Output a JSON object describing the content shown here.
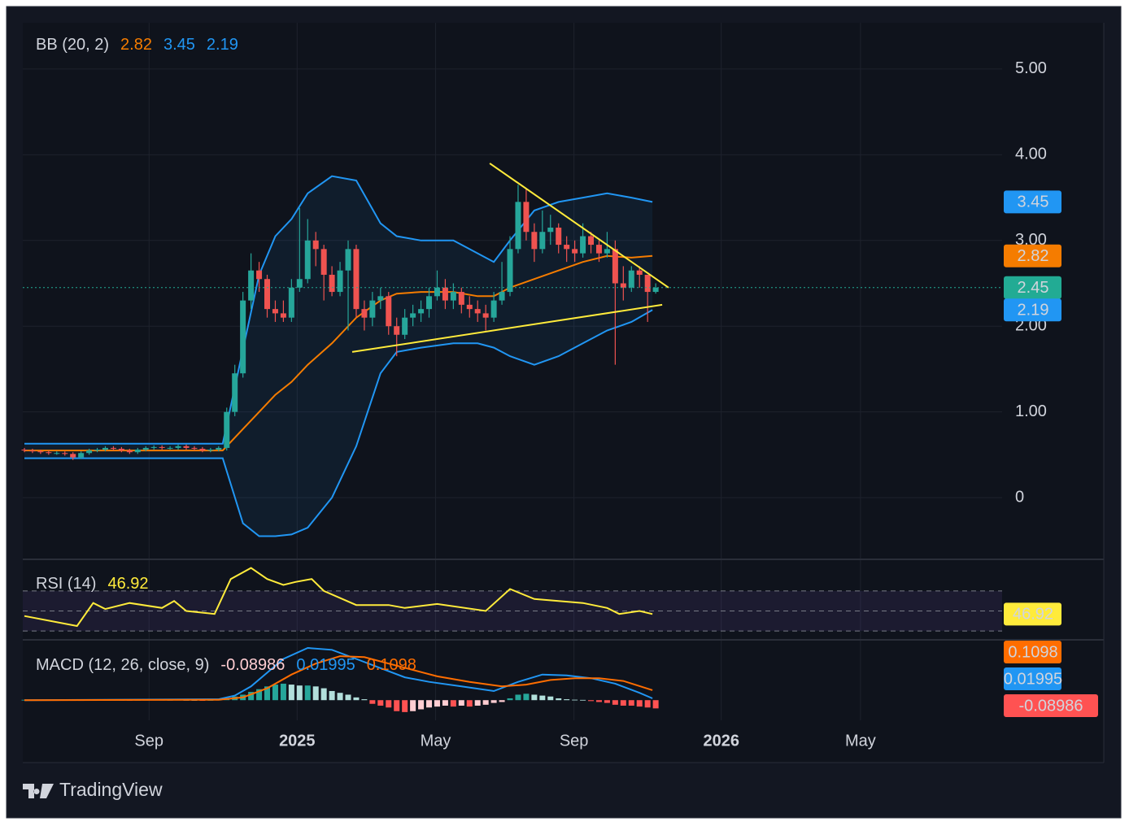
{
  "chart_data": [
    {
      "type": "candlestick",
      "title": "BB (20, 2)",
      "ylim": [
        -0.72,
        5.54
      ],
      "yticks": [
        0,
        {
          "value": 1,
          "label": "1.00"
        },
        {
          "value": 2,
          "label": "2.00"
        },
        {
          "value": 3,
          "label": "3.00"
        },
        {
          "value": 4,
          "label": "4.00"
        },
        {
          "value": 5,
          "label": "5.00"
        }
      ],
      "grid": true,
      "candles": {
        "up_color": "#26a69a",
        "down_color": "#ef5350",
        "x": [
          0,
          1,
          2,
          3,
          4,
          5,
          6,
          7,
          8,
          9,
          10,
          11,
          12,
          13,
          14,
          15,
          16,
          17,
          18,
          19,
          20,
          21,
          22,
          23,
          24,
          25,
          26,
          27,
          28,
          29,
          30,
          31,
          32,
          33,
          34,
          35,
          36,
          37,
          38,
          39,
          40,
          41,
          42,
          43,
          44,
          45,
          46,
          47,
          48,
          49,
          50,
          51,
          52,
          53,
          54,
          55,
          56,
          57,
          58,
          59,
          60,
          61,
          62,
          63,
          64,
          65,
          66,
          67,
          68,
          69,
          70,
          71,
          72,
          73,
          74,
          75,
          76,
          77,
          78
        ],
        "open": [
          0.56,
          0.55,
          0.54,
          0.53,
          0.52,
          0.52,
          0.51,
          0.47,
          0.52,
          0.55,
          0.56,
          0.58,
          0.57,
          0.55,
          0.53,
          0.56,
          0.58,
          0.59,
          0.58,
          0.58,
          0.6,
          0.58,
          0.57,
          0.55,
          0.56,
          0.58,
          1.0,
          1.45,
          2.3,
          2.65,
          2.55,
          2.2,
          2.15,
          2.1,
          2.45,
          2.55,
          3.0,
          2.9,
          2.6,
          2.4,
          2.65,
          2.9,
          2.2,
          2.1,
          2.3,
          2.35,
          2.0,
          1.9,
          2.1,
          2.15,
          2.2,
          2.35,
          2.45,
          2.3,
          2.4,
          2.25,
          2.2,
          2.15,
          2.1,
          2.3,
          2.4,
          2.9,
          3.45,
          3.1,
          2.9,
          3.1,
          3.15,
          2.95,
          2.9,
          2.85,
          3.05,
          2.95,
          2.85,
          2.9,
          2.5,
          2.45,
          2.65,
          2.6,
          2.4
        ],
        "high": [
          0.58,
          0.57,
          0.56,
          0.55,
          0.54,
          0.54,
          0.53,
          0.54,
          0.57,
          0.58,
          0.6,
          0.6,
          0.59,
          0.57,
          0.58,
          0.6,
          0.61,
          0.61,
          0.6,
          0.62,
          0.62,
          0.6,
          0.59,
          0.58,
          0.6,
          1.05,
          1.55,
          2.4,
          2.85,
          2.75,
          2.6,
          2.3,
          2.3,
          2.55,
          3.38,
          3.25,
          3.1,
          2.95,
          2.7,
          2.75,
          3.0,
          2.95,
          2.3,
          2.4,
          2.45,
          2.4,
          2.1,
          2.2,
          2.25,
          2.3,
          2.45,
          2.65,
          2.55,
          2.5,
          2.45,
          2.35,
          2.3,
          2.25,
          2.4,
          2.75,
          3.05,
          3.65,
          3.6,
          3.2,
          3.35,
          3.3,
          3.2,
          3.05,
          3.0,
          3.2,
          3.1,
          3.0,
          3.1,
          3.0,
          2.7,
          2.7,
          2.7,
          2.6,
          2.5
        ],
        "low": [
          0.53,
          0.52,
          0.51,
          0.5,
          0.5,
          0.49,
          0.44,
          0.45,
          0.5,
          0.53,
          0.54,
          0.55,
          0.53,
          0.51,
          0.51,
          0.54,
          0.56,
          0.56,
          0.56,
          0.56,
          0.56,
          0.55,
          0.53,
          0.53,
          0.54,
          0.55,
          0.95,
          1.4,
          2.2,
          2.4,
          2.1,
          2.05,
          2.05,
          2.05,
          2.4,
          2.5,
          2.7,
          2.3,
          2.35,
          2.35,
          1.95,
          2.1,
          1.95,
          2.0,
          2.2,
          1.9,
          1.65,
          1.85,
          2.0,
          2.05,
          2.1,
          2.3,
          2.2,
          2.2,
          2.15,
          2.1,
          2.05,
          1.95,
          2.05,
          2.25,
          2.35,
          2.85,
          3.0,
          2.75,
          2.85,
          2.95,
          2.85,
          2.75,
          2.75,
          2.8,
          2.85,
          2.75,
          2.8,
          1.55,
          2.3,
          2.4,
          2.45,
          2.05,
          2.38
        ],
        "close": [
          0.55,
          0.54,
          0.53,
          0.52,
          0.52,
          0.51,
          0.47,
          0.52,
          0.55,
          0.56,
          0.58,
          0.57,
          0.55,
          0.53,
          0.56,
          0.58,
          0.59,
          0.58,
          0.58,
          0.6,
          0.58,
          0.57,
          0.55,
          0.56,
          0.58,
          1.0,
          1.45,
          2.3,
          2.65,
          2.55,
          2.2,
          2.15,
          2.1,
          2.45,
          2.55,
          3.0,
          2.9,
          2.6,
          2.4,
          2.65,
          2.9,
          2.2,
          2.1,
          2.3,
          2.35,
          2.0,
          1.9,
          2.1,
          2.15,
          2.2,
          2.35,
          2.45,
          2.3,
          2.4,
          2.25,
          2.2,
          2.15,
          2.1,
          2.3,
          2.4,
          2.9,
          3.45,
          3.1,
          2.9,
          3.1,
          3.15,
          2.95,
          2.9,
          2.85,
          3.05,
          2.95,
          2.85,
          2.9,
          2.5,
          2.45,
          2.65,
          2.6,
          2.4,
          2.45
        ],
        "last_color": "#22ab94"
      },
      "band_color": "#2196f3",
      "series": [
        {
          "color": "#f57c00",
          "x": [
            0,
            24.5,
            27,
            29,
            31,
            33,
            35,
            38,
            41,
            44,
            46,
            49,
            53,
            56,
            58,
            60,
            63,
            66,
            69,
            72,
            75,
            77.6
          ],
          "values": [
            0.55,
            0.55,
            0.8,
            1.0,
            1.2,
            1.35,
            1.55,
            1.8,
            2.1,
            2.3,
            2.38,
            2.4,
            2.4,
            2.35,
            2.35,
            2.45,
            2.55,
            2.65,
            2.75,
            2.82,
            2.8,
            2.82
          ]
        },
        {
          "color": "#2196f3",
          "x": [
            0,
            24.5,
            27,
            29,
            31,
            33,
            35,
            38,
            41,
            44,
            46,
            49,
            53,
            56,
            58,
            60,
            63,
            66,
            69,
            72,
            75,
            77.6
          ],
          "values": [
            0.63,
            0.63,
            1.73,
            2.6,
            3.05,
            3.25,
            3.55,
            3.75,
            3.7,
            3.2,
            3.05,
            3.0,
            3.0,
            2.85,
            2.75,
            3.0,
            3.35,
            3.45,
            3.5,
            3.55,
            3.5,
            3.45
          ]
        },
        {
          "color": "#2196f3",
          "x": [
            0,
            24.5,
            27,
            29,
            31,
            33,
            35,
            38,
            41,
            44,
            46,
            49,
            53,
            56,
            58,
            60,
            63,
            66,
            69,
            72,
            75,
            77.6
          ],
          "values": [
            0.46,
            0.46,
            -0.3,
            -0.45,
            -0.45,
            -0.43,
            -0.35,
            0.0,
            0.6,
            1.45,
            1.7,
            1.75,
            1.8,
            1.8,
            1.75,
            1.65,
            1.55,
            1.65,
            1.8,
            1.95,
            2.05,
            2.19
          ]
        }
      ],
      "trendlines": [
        {
          "color": "#ffeb3b",
          "x": [
            40.5,
            78.8
          ],
          "values": [
            1.7,
            2.25
          ]
        },
        {
          "color": "#ffeb3b",
          "x": [
            57.5,
            79.6
          ],
          "values": [
            3.9,
            2.45
          ]
        }
      ]
    },
    {
      "type": "line",
      "title": "RSI (14)",
      "color": "#ffeb3b",
      "ylim": [
        22,
        100
      ],
      "levels": [
        70,
        50,
        30
      ],
      "band_color": "#7e57c2",
      "x": [
        0,
        6.5,
        8.5,
        10,
        13,
        17,
        18.5,
        20,
        23.5,
        25.5,
        28,
        30,
        32,
        33.5,
        35.5,
        37,
        41,
        45,
        47,
        51,
        57,
        60,
        63,
        66,
        69,
        72,
        73.5,
        76,
        77.6
      ],
      "values": [
        45,
        35,
        58,
        52,
        58,
        53,
        60,
        50,
        47,
        82,
        93,
        82,
        76,
        79,
        82,
        70,
        56,
        56,
        53,
        57,
        50,
        72,
        62,
        60,
        58,
        53,
        47,
        50,
        46.92
      ]
    },
    {
      "type": "macd",
      "title": "MACD (12, 26, close, 9)",
      "ylim": [
        -0.22,
        0.65
      ],
      "xlim": [
        -0.2,
        120.8
      ],
      "xticks": [
        {
          "value": 15.4,
          "label": "Sep"
        },
        {
          "value": 33.7,
          "label": "2025"
        },
        {
          "value": 50.8,
          "label": "May"
        },
        {
          "value": 67.9,
          "label": "Sep"
        },
        {
          "value": 86.1,
          "label": "2026"
        },
        {
          "value": 103.3,
          "label": "May"
        }
      ],
      "histogram": [
        0.004,
        0.003,
        0.002,
        -0.002,
        -0.003,
        -0.004,
        -0.006,
        -0.002,
        0.003,
        0.004,
        0.005,
        0.004,
        0.002,
        -0.002,
        0.002,
        0.004,
        0.005,
        0.004,
        0.003,
        0.004,
        0.002,
        0.001,
        -0.002,
        0.001,
        0.004,
        0.02,
        0.04,
        0.06,
        0.09,
        0.12,
        0.15,
        0.17,
        0.18,
        0.17,
        0.16,
        0.16,
        0.15,
        0.13,
        0.1,
        0.08,
        0.06,
        0.03,
        0.01,
        -0.04,
        -0.06,
        -0.08,
        -0.12,
        -0.13,
        -0.12,
        -0.1,
        -0.08,
        -0.07,
        -0.06,
        -0.07,
        -0.06,
        -0.07,
        -0.06,
        -0.05,
        -0.03,
        -0.02,
        0.02,
        0.06,
        0.07,
        0.06,
        0.05,
        0.04,
        0.02,
        0.01,
        0.005,
        0.003,
        -0.01,
        -0.02,
        -0.03,
        -0.05,
        -0.06,
        -0.06,
        -0.07,
        -0.08,
        -0.08986
      ],
      "histogram_colors": [
        "#26a69a",
        "#b2dfdb",
        "#ff5252",
        "#ffcdd2"
      ],
      "series": [
        {
          "color": "#2196f3",
          "x": [
            0,
            24,
            26,
            28,
            30,
            32,
            35,
            38,
            41,
            44,
            47,
            50,
            54,
            58,
            61,
            64,
            67,
            70,
            73,
            76,
            77.6
          ],
          "values": [
            0,
            0.01,
            0.05,
            0.15,
            0.3,
            0.45,
            0.57,
            0.55,
            0.45,
            0.35,
            0.25,
            0.2,
            0.15,
            0.1,
            0.2,
            0.28,
            0.27,
            0.24,
            0.18,
            0.08,
            0.01995
          ]
        },
        {
          "color": "#ff6d00",
          "x": [
            0,
            24,
            27,
            30,
            33,
            36,
            39,
            42,
            45,
            48,
            51,
            55,
            59,
            62,
            65,
            68,
            71,
            74,
            77.6
          ],
          "values": [
            0,
            0.005,
            0.03,
            0.13,
            0.28,
            0.4,
            0.48,
            0.47,
            0.4,
            0.33,
            0.26,
            0.2,
            0.15,
            0.17,
            0.22,
            0.24,
            0.24,
            0.21,
            0.1098
          ]
        }
      ]
    }
  ],
  "footer": {
    "brand": "TradingView"
  }
}
